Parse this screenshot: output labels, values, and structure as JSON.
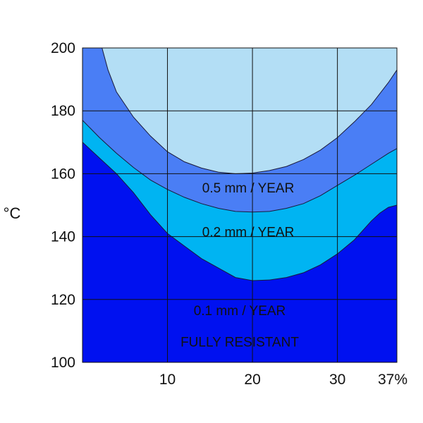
{
  "chart_data": {
    "type": "area",
    "title": "",
    "xlabel": "",
    "ylabel": "°C",
    "xlim": [
      0,
      37
    ],
    "ylim": [
      100,
      200
    ],
    "x_ticks": [
      {
        "value": 10,
        "label": "10"
      },
      {
        "value": 20,
        "label": "20"
      },
      {
        "value": 30,
        "label": "30"
      },
      {
        "value": 37,
        "label": "37%"
      }
    ],
    "y_ticks": [
      {
        "value": 100,
        "label": "100"
      },
      {
        "value": 120,
        "label": "120"
      },
      {
        "value": 140,
        "label": "140"
      },
      {
        "value": 160,
        "label": "160"
      },
      {
        "value": 180,
        "label": "180"
      },
      {
        "value": 200,
        "label": "200"
      }
    ],
    "grid": true,
    "series": [
      {
        "name": "0.1 mm / YEAR",
        "color": "#0011f0",
        "boundary": [
          [
            0,
            170
          ],
          [
            2,
            165
          ],
          [
            4,
            160
          ],
          [
            6,
            154
          ],
          [
            8,
            147
          ],
          [
            10,
            141
          ],
          [
            12,
            137
          ],
          [
            14,
            133
          ],
          [
            16,
            130
          ],
          [
            18,
            127
          ],
          [
            20,
            126
          ],
          [
            22,
            126.2
          ],
          [
            24,
            127
          ],
          [
            26,
            128.5
          ],
          [
            28,
            131
          ],
          [
            30,
            134.5
          ],
          [
            32,
            139
          ],
          [
            34,
            145
          ],
          [
            35,
            147.5
          ],
          [
            36,
            149.3
          ],
          [
            37,
            150
          ]
        ]
      },
      {
        "name": "0.2 mm / YEAR",
        "color": "#00b4f2",
        "boundary": [
          [
            0,
            177
          ],
          [
            2,
            171.5
          ],
          [
            4,
            166.5
          ],
          [
            6,
            162
          ],
          [
            8,
            158
          ],
          [
            10,
            155
          ],
          [
            12,
            152.5
          ],
          [
            14,
            150.5
          ],
          [
            16,
            149
          ],
          [
            18,
            148
          ],
          [
            20,
            147.8
          ],
          [
            22,
            148
          ],
          [
            24,
            149
          ],
          [
            26,
            150.5
          ],
          [
            28,
            153
          ],
          [
            30,
            156.3
          ],
          [
            32,
            159.5
          ],
          [
            34,
            163
          ],
          [
            36,
            166.5
          ],
          [
            37,
            168
          ]
        ]
      },
      {
        "name": "0.5 mm / YEAR",
        "color": "#4a7ef5",
        "boundary": [
          [
            2.3,
            200
          ],
          [
            3,
            193
          ],
          [
            4,
            186
          ],
          [
            6,
            178
          ],
          [
            8,
            172
          ],
          [
            10,
            167
          ],
          [
            12,
            163.8
          ],
          [
            14,
            161.8
          ],
          [
            16,
            160.5
          ],
          [
            18,
            160
          ],
          [
            20,
            160.2
          ],
          [
            22,
            161
          ],
          [
            24,
            162.3
          ],
          [
            26,
            164.5
          ],
          [
            28,
            167.5
          ],
          [
            30,
            171.5
          ],
          [
            32,
            176.5
          ],
          [
            34,
            182
          ],
          [
            36,
            189
          ],
          [
            37,
            193
          ]
        ]
      }
    ],
    "top_region_color": "#b3def5",
    "annotations": [
      {
        "text": "0.5 mm / YEAR",
        "x": 19.5,
        "y": 154
      },
      {
        "text": "0.2 mm / YEAR",
        "x": 19.5,
        "y": 140
      },
      {
        "text": "0.1 mm / YEAR",
        "x": 18.5,
        "y": 115
      },
      {
        "text": "FULLY RESISTANT",
        "x": 18.5,
        "y": 105
      }
    ]
  }
}
